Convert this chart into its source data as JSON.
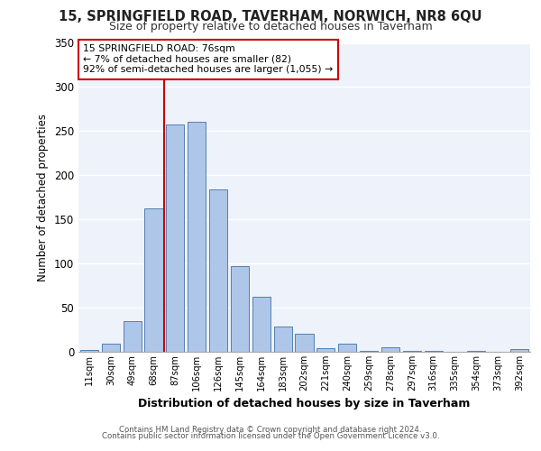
{
  "title_line1": "15, SPRINGFIELD ROAD, TAVERHAM, NORWICH, NR8 6QU",
  "title_line2": "Size of property relative to detached houses in Taverham",
  "xlabel": "Distribution of detached houses by size in Taverham",
  "ylabel": "Number of detached properties",
  "categories": [
    "11sqm",
    "30sqm",
    "49sqm",
    "68sqm",
    "87sqm",
    "106sqm",
    "126sqm",
    "145sqm",
    "164sqm",
    "183sqm",
    "202sqm",
    "221sqm",
    "240sqm",
    "259sqm",
    "278sqm",
    "297sqm",
    "316sqm",
    "335sqm",
    "354sqm",
    "373sqm",
    "392sqm"
  ],
  "values": [
    2,
    9,
    35,
    162,
    258,
    261,
    184,
    97,
    62,
    29,
    20,
    4,
    9,
    1,
    5,
    1,
    1,
    0,
    1,
    0,
    3
  ],
  "bar_color": "#aec6e8",
  "bar_edge_color": "#5580b0",
  "background_color": "#eef2fa",
  "grid_color": "#ffffff",
  "vline_x": 3.5,
  "vline_color": "#cc0000",
  "annotation_text": "15 SPRINGFIELD ROAD: 76sqm\n← 7% of detached houses are smaller (82)\n92% of semi-detached houses are larger (1,055) →",
  "annotation_box_color": "#ffffff",
  "annotation_box_edge": "#cc0000",
  "ylim": [
    0,
    350
  ],
  "yticks": [
    0,
    50,
    100,
    150,
    200,
    250,
    300,
    350
  ],
  "footer_line1": "Contains HM Land Registry data © Crown copyright and database right 2024.",
  "footer_line2": "Contains public sector information licensed under the Open Government Licence v3.0."
}
